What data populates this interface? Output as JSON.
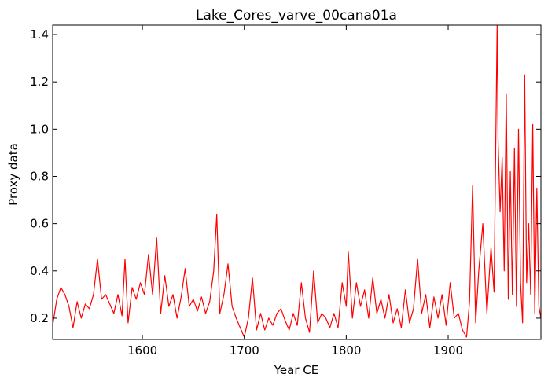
{
  "chart_data": {
    "type": "line",
    "title": "Lake_Cores_varve_00cana01a",
    "xlabel": "Year CE",
    "ylabel": "Proxy data",
    "xlim": [
      1512,
      1991
    ],
    "ylim": [
      0.11,
      1.44
    ],
    "xticks": [
      1600,
      1700,
      1800,
      1900
    ],
    "yticks": [
      0.2,
      0.4,
      0.6,
      0.8,
      1.0,
      1.2,
      1.4
    ],
    "ytick_labels": [
      "0.2",
      "0.4",
      "0.6",
      "0.8",
      "1.0",
      "1.2",
      "1.4"
    ],
    "grid": false,
    "series": [
      {
        "color": "#ff0000",
        "x": [
          1512,
          1516,
          1520,
          1524,
          1528,
          1532,
          1536,
          1540,
          1544,
          1548,
          1552,
          1556,
          1560,
          1564,
          1568,
          1572,
          1576,
          1580,
          1583,
          1586,
          1590,
          1594,
          1598,
          1602,
          1606,
          1610,
          1614,
          1618,
          1622,
          1626,
          1630,
          1634,
          1638,
          1642,
          1646,
          1650,
          1654,
          1658,
          1662,
          1666,
          1670,
          1673,
          1676,
          1680,
          1684,
          1688,
          1692,
          1696,
          1700,
          1704,
          1708,
          1712,
          1716,
          1720,
          1724,
          1728,
          1732,
          1736,
          1740,
          1744,
          1748,
          1752,
          1756,
          1760,
          1764,
          1768,
          1772,
          1776,
          1780,
          1784,
          1788,
          1792,
          1796,
          1800,
          1802,
          1806,
          1810,
          1814,
          1818,
          1822,
          1826,
          1830,
          1834,
          1838,
          1842,
          1846,
          1850,
          1854,
          1858,
          1862,
          1866,
          1870,
          1874,
          1878,
          1882,
          1886,
          1890,
          1894,
          1898,
          1902,
          1906,
          1910,
          1914,
          1918,
          1921,
          1924,
          1927,
          1930,
          1934,
          1938,
          1942,
          1945,
          1948,
          1949,
          1951,
          1953,
          1955,
          1957,
          1959,
          1961,
          1963,
          1965,
          1967,
          1969,
          1971,
          1973,
          1975,
          1977,
          1979,
          1981,
          1983,
          1985,
          1987,
          1989,
          1991
        ],
        "y": [
          0.17,
          0.28,
          0.33,
          0.3,
          0.25,
          0.16,
          0.27,
          0.2,
          0.26,
          0.24,
          0.3,
          0.45,
          0.28,
          0.3,
          0.26,
          0.22,
          0.3,
          0.21,
          0.45,
          0.18,
          0.33,
          0.28,
          0.35,
          0.3,
          0.47,
          0.3,
          0.54,
          0.22,
          0.38,
          0.25,
          0.3,
          0.2,
          0.29,
          0.41,
          0.25,
          0.28,
          0.23,
          0.29,
          0.22,
          0.27,
          0.4,
          0.64,
          0.22,
          0.3,
          0.43,
          0.25,
          0.2,
          0.16,
          0.12,
          0.2,
          0.37,
          0.15,
          0.22,
          0.15,
          0.2,
          0.17,
          0.22,
          0.24,
          0.19,
          0.15,
          0.22,
          0.17,
          0.35,
          0.2,
          0.14,
          0.4,
          0.18,
          0.22,
          0.2,
          0.16,
          0.22,
          0.16,
          0.35,
          0.25,
          0.48,
          0.2,
          0.35,
          0.25,
          0.32,
          0.2,
          0.37,
          0.22,
          0.28,
          0.2,
          0.3,
          0.18,
          0.24,
          0.16,
          0.32,
          0.18,
          0.24,
          0.45,
          0.22,
          0.3,
          0.16,
          0.29,
          0.2,
          0.3,
          0.17,
          0.35,
          0.2,
          0.22,
          0.15,
          0.12,
          0.27,
          0.76,
          0.18,
          0.4,
          0.6,
          0.22,
          0.5,
          0.31,
          1.44,
          0.95,
          0.65,
          0.88,
          0.4,
          1.15,
          0.28,
          0.82,
          0.3,
          0.92,
          0.25,
          1.0,
          0.35,
          0.18,
          1.23,
          0.35,
          0.6,
          0.3,
          1.02,
          0.22,
          0.75,
          0.25,
          0.2
        ]
      }
    ]
  }
}
